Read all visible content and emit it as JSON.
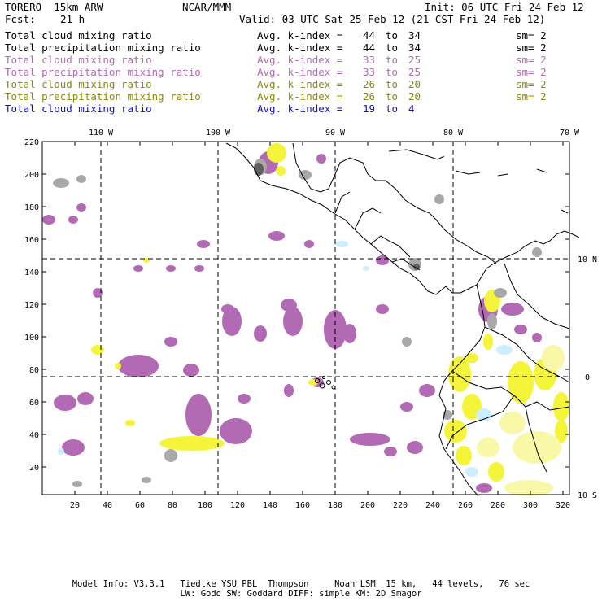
{
  "header": {
    "model": "TORERO  15km ARW",
    "org": "NCAR/MMM",
    "init": "Init: 06 UTC Fri 24 Feb 12",
    "fcst_label": "Fcst:",
    "fcst_value": "21 h",
    "valid": "Valid: 03 UTC Sat 25 Feb 12 (21 CST Fri 24 Feb 12)"
  },
  "legend": [
    {
      "field": "Total cloud mixing ratio",
      "stat": "Avg. k-index =",
      "from": "44",
      "to_word": "to",
      "to": "34",
      "sm": "sm= 2",
      "color": "#000000"
    },
    {
      "field": "Total precipitation mixing ratio",
      "stat": "Avg. k-index =",
      "from": "44",
      "to_word": "to",
      "to": "34",
      "sm": "sm= 2",
      "color": "#000000"
    },
    {
      "field": "Total cloud mixing ratio",
      "stat": "Avg. k-index =",
      "from": "33",
      "to_word": "to",
      "to": "25",
      "sm": "sm= 2",
      "color": "#b36ab4"
    },
    {
      "field": "Total precipitation mixing ratio",
      "stat": "Avg. k-index =",
      "from": "33",
      "to_word": "to",
      "to": "25",
      "sm": "sm= 2",
      "color": "#b36ab4"
    },
    {
      "field": "Total cloud mixing ratio",
      "stat": "Avg. k-index =",
      "from": "26",
      "to_word": "to",
      "to": "20",
      "sm": "sm= 2",
      "color": "#8a8a10"
    },
    {
      "field": "Total precipitation mixing ratio",
      "stat": "Avg. k-index =",
      "from": "26",
      "to_word": "to",
      "to": "20",
      "sm": "sm= 2",
      "color": "#8a8a10"
    },
    {
      "field": "Total cloud mixing ratio",
      "stat": "Avg. k-index =",
      "from": "19",
      "to_word": "to",
      "to": "4",
      "sm": "",
      "color": "#1010d0"
    }
  ],
  "map": {
    "lon_labels": [
      "110 W",
      "100 W",
      "90 W",
      "80 W",
      "70 W"
    ],
    "lat_labels": [
      "10 N",
      "0",
      "10 S"
    ],
    "x_ticks": [
      "20",
      "40",
      "60",
      "80",
      "100",
      "120",
      "140",
      "160",
      "180",
      "200",
      "220",
      "240",
      "260",
      "280",
      "300",
      "320"
    ],
    "y_ticks": [
      "220",
      "200",
      "180",
      "160",
      "140",
      "120",
      "100",
      "80",
      "60",
      "40",
      "20"
    ],
    "fill_colors": {
      "purple": "#b36ab4",
      "yellow": "#f4f43a",
      "pale_yellow": "#f8f8a8",
      "gray": "#a8a8a8",
      "dark_gray": "#606060",
      "light_blue": "#cceeff"
    }
  },
  "footer": {
    "line1": "Model Info: V3.3.1   Tiedtke YSU PBL  Thompson     Noah LSM  15 km,   44 levels,   76 sec",
    "line2": "LW: Godd SW: Goddard DIFF: simple KM: 2D Smagor"
  }
}
